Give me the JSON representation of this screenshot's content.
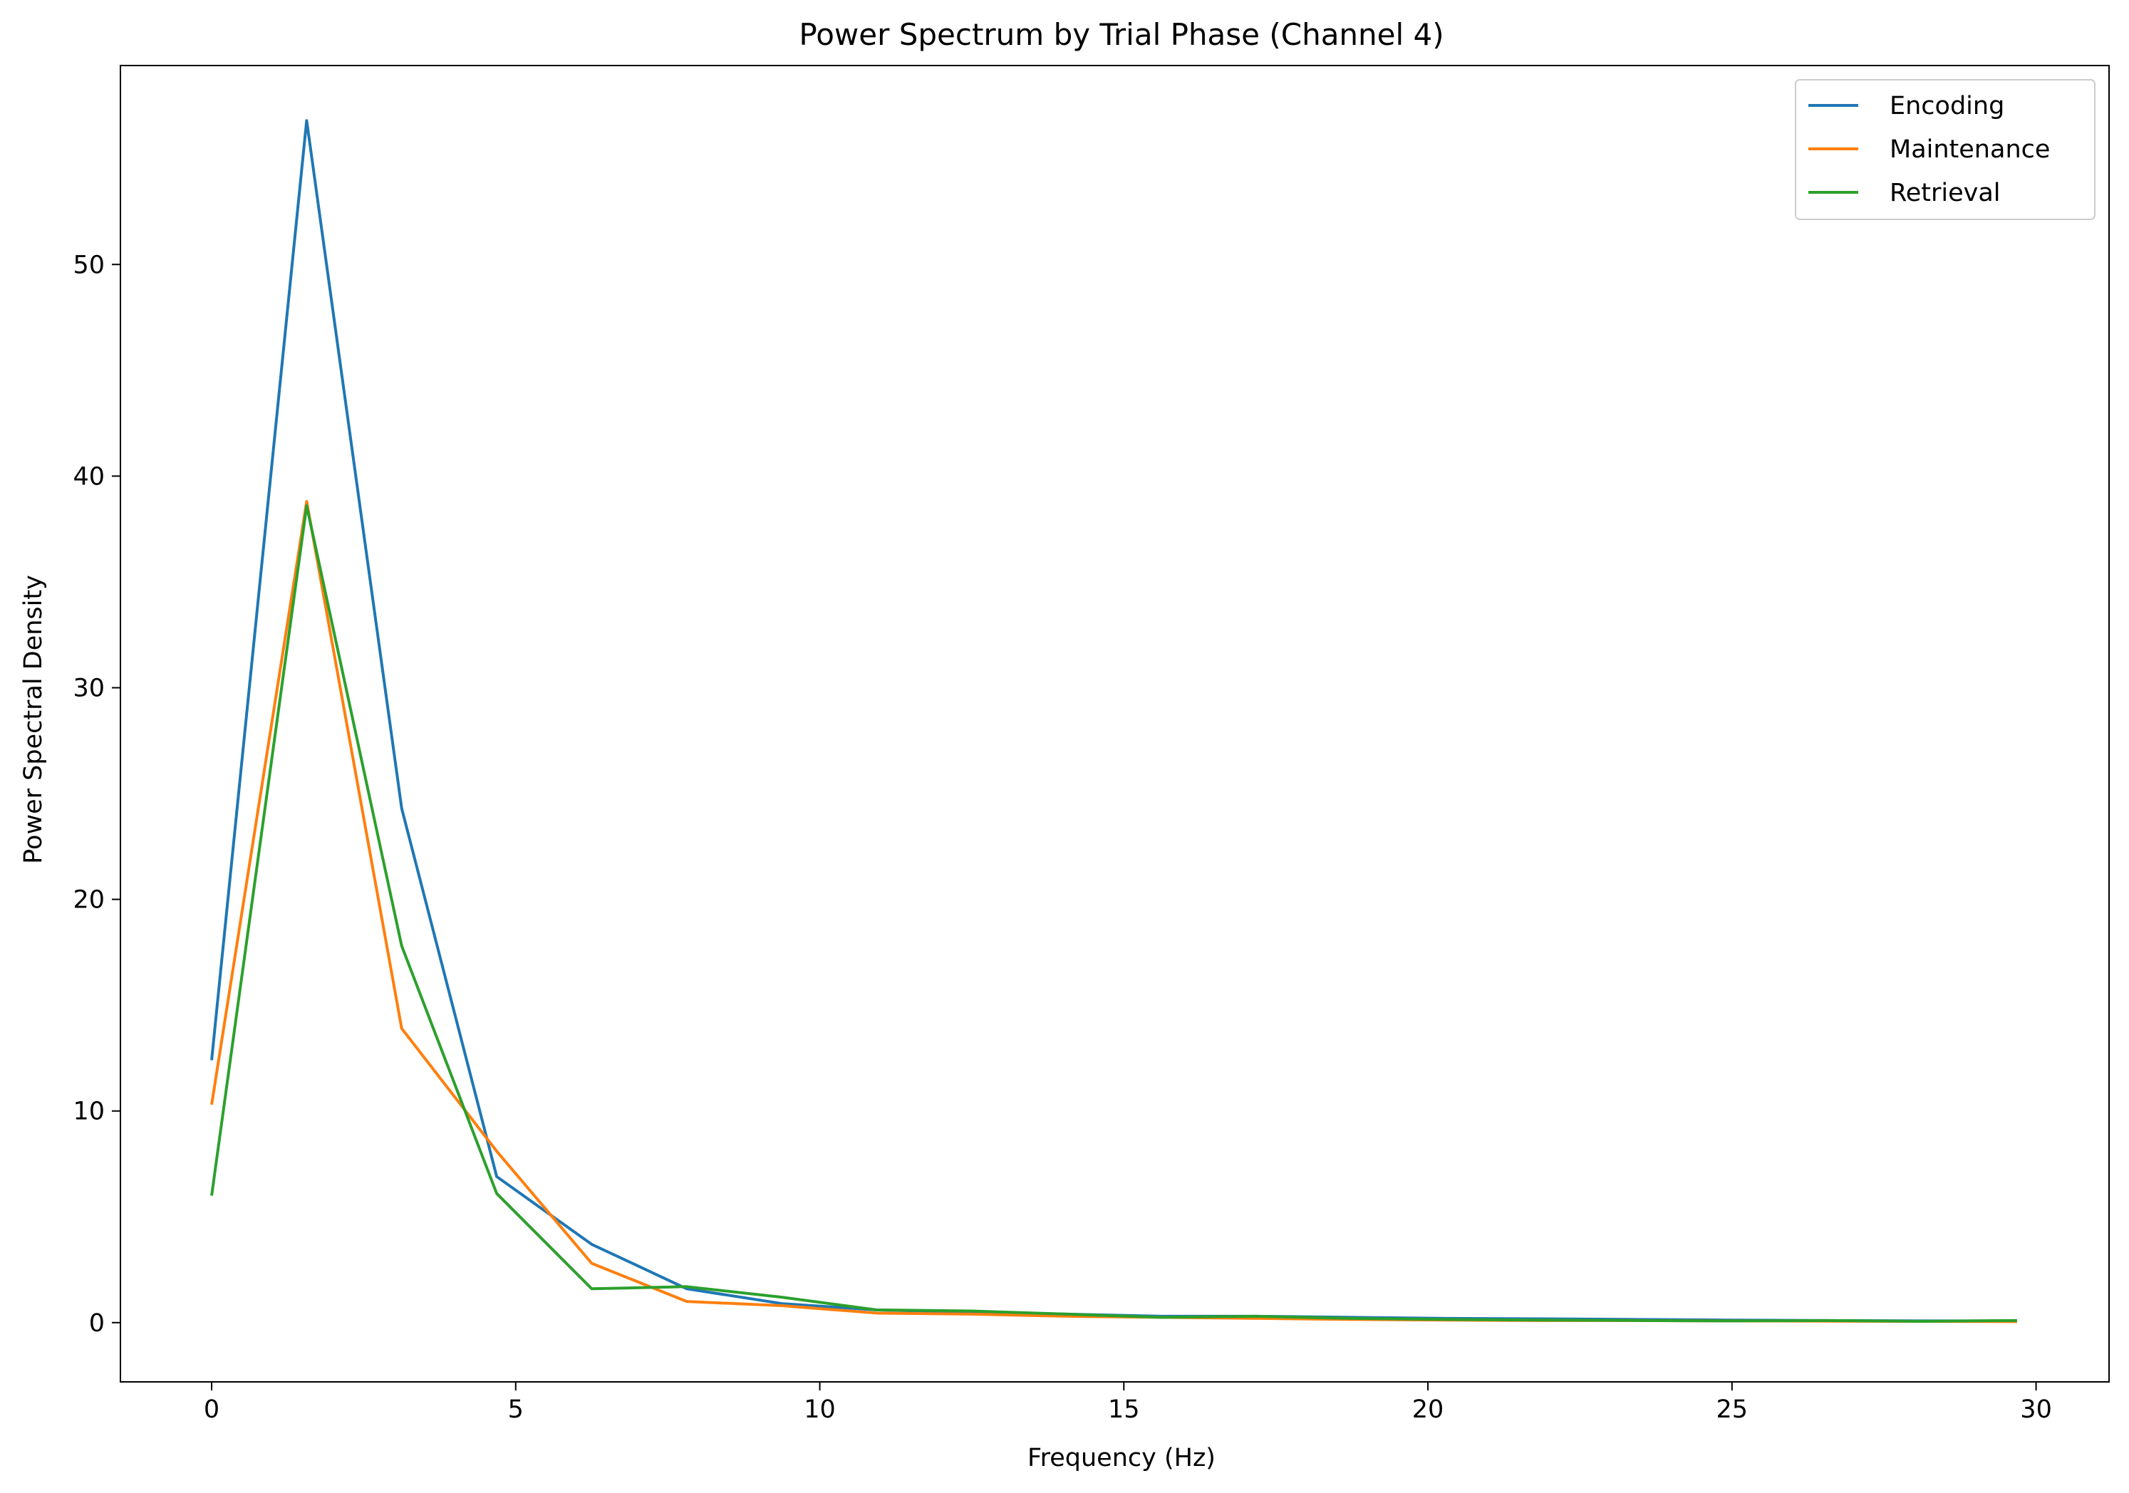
{
  "chart_data": {
    "type": "line",
    "title": "Power Spectrum by Trial Phase (Channel 4)",
    "xlabel": "Frequency (Hz)",
    "ylabel": "Power Spectral Density",
    "xlim": [
      -1.5,
      31.2
    ],
    "ylim": [
      -2.8,
      59.4
    ],
    "xticks": [
      0,
      5,
      10,
      15,
      20,
      25,
      30
    ],
    "yticks": [
      0,
      10,
      20,
      30,
      40,
      50
    ],
    "grid": false,
    "legend_position": "top-right",
    "x": [
      0,
      1.5625,
      3.125,
      4.6875,
      6.25,
      7.8125,
      9.375,
      10.9375,
      12.5,
      14.0625,
      15.625,
      17.1875,
      18.75,
      20.3125,
      21.875,
      23.4375,
      25.0,
      26.5625,
      28.125,
      29.6875
    ],
    "series": [
      {
        "name": "Encoding",
        "color": "#1f77b4",
        "values": [
          12.4,
          56.8,
          24.3,
          6.9,
          3.7,
          1.6,
          0.9,
          0.6,
          0.5,
          0.4,
          0.3,
          0.3,
          0.25,
          0.2,
          0.18,
          0.15,
          0.12,
          0.1,
          0.08,
          0.08
        ]
      },
      {
        "name": "Maintenance",
        "color": "#ff7f0e",
        "values": [
          10.3,
          38.8,
          13.9,
          8.1,
          2.8,
          1.0,
          0.8,
          0.45,
          0.4,
          0.3,
          0.25,
          0.2,
          0.15,
          0.12,
          0.1,
          0.1,
          0.08,
          0.07,
          0.06,
          0.05
        ]
      },
      {
        "name": "Retrieval",
        "color": "#2ca02c",
        "values": [
          6.0,
          38.6,
          17.8,
          6.1,
          1.6,
          1.7,
          1.2,
          0.6,
          0.55,
          0.4,
          0.25,
          0.3,
          0.2,
          0.15,
          0.12,
          0.1,
          0.08,
          0.1,
          0.06,
          0.1
        ]
      }
    ]
  }
}
